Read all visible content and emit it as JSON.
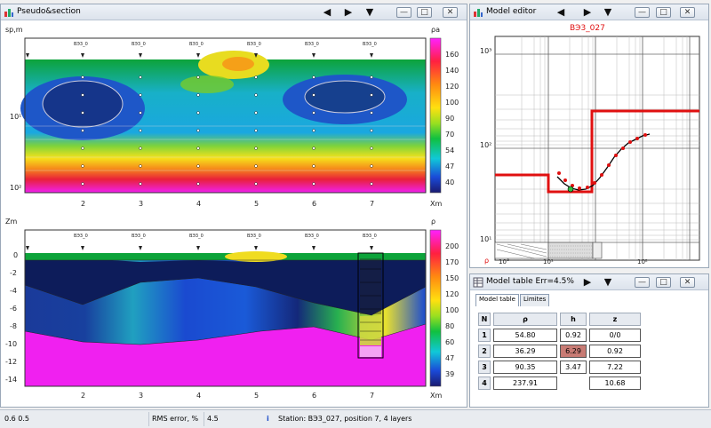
{
  "pseudo_window": {
    "title": "Pseudo&section",
    "top_plot": {
      "y_axis_label": "sp,m",
      "y_ticks": [
        "10¹",
        "10²"
      ],
      "colorbar_label": "ρa",
      "colorbar_ticks": [
        "160",
        "140",
        "120",
        "100",
        "90",
        "70",
        "54",
        "47",
        "40"
      ],
      "x_axis_label": "Xm",
      "x_ticks": [
        "2",
        "3",
        "4",
        "5",
        "6",
        "7"
      ]
    },
    "bottom_plot": {
      "y_axis_label": "Zm",
      "y_ticks": [
        "0",
        "-2",
        "-4",
        "-6",
        "-8",
        "-10",
        "-12",
        "-14"
      ],
      "colorbar_label": "ρ",
      "colorbar_ticks": [
        "200",
        "170",
        "150",
        "120",
        "100",
        "80",
        "60",
        "47",
        "39"
      ],
      "x_axis_label": "Xm",
      "x_ticks": [
        "2",
        "3",
        "4",
        "5",
        "6",
        "7"
      ]
    },
    "station_label": "ВЭ3_0"
  },
  "model_editor": {
    "title": "Model editor",
    "curve_title": "ВЭ3_027",
    "y_ticks": [
      "10³",
      "10²",
      "10¹"
    ],
    "x_ticks": [
      "10°",
      "10¹",
      "10²"
    ],
    "rho_label": "ρ"
  },
  "model_table": {
    "title": "Model table Err=4.5%",
    "tabs": [
      "Model table",
      "Limites"
    ],
    "columns": [
      "N",
      "ρ",
      "h",
      "z"
    ],
    "rows": [
      {
        "n": "1",
        "rho": "54.80",
        "h": "0.92",
        "z": "0/0"
      },
      {
        "n": "2",
        "rho": "36.29",
        "h": "6.29",
        "z": "0.92"
      },
      {
        "n": "3",
        "rho": "90.35",
        "h": "3.47",
        "z": "7.22"
      },
      {
        "n": "4",
        "rho": "237.91",
        "h": "",
        "z": "10.68"
      }
    ]
  },
  "status": {
    "coords": "0.6 0.5",
    "rms_label": "RMS error, %",
    "rms_value": "4.5",
    "station_info": "Station: ВЭ3_027, position 7, 4 layers"
  }
}
